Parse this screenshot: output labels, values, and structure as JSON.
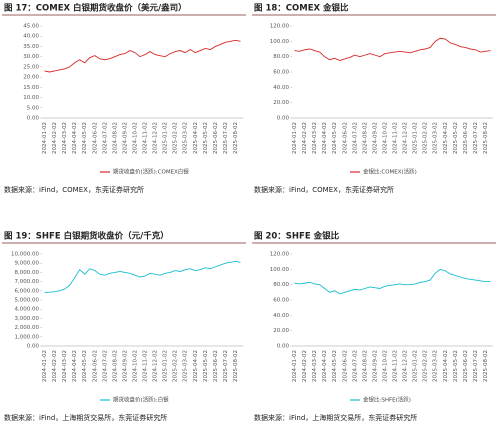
{
  "chart_data": [
    {
      "type": "line",
      "title": "图 17：COMEX 白银期货收盘价（美元/盎司）",
      "source": "数据来源：iFind，COMEX，东莞证券研究所",
      "categories": [
        "2024-01-02",
        null,
        "2024-02-02",
        null,
        "2024-03-02",
        null,
        "2024-04-02",
        null,
        "2024-05-02",
        null,
        "2024-06-02",
        null,
        "2024-07-02",
        null,
        "2024-08-02",
        null,
        "2024-09-02",
        null,
        "2024-10-02",
        null,
        "2024-11-02",
        null,
        "2024-12-02",
        null,
        "2025-01-02",
        null,
        "2025-02-02",
        null,
        "2025-03-02",
        null,
        "2025-04-02",
        null,
        "2025-05-02",
        null,
        "2025-06-02",
        null,
        "2025-07-02",
        null,
        "2025-08-02",
        null
      ],
      "series": [
        {
          "name": "期货收盘价(活跃):COMEX白银",
          "color": "#d62728",
          "values": [
            23,
            22.5,
            23,
            23.5,
            24,
            25,
            27,
            28.5,
            27,
            29.5,
            30.5,
            29,
            28.5,
            29,
            30,
            31,
            31.5,
            33,
            32,
            30,
            31,
            32.5,
            31,
            30.5,
            30,
            31.5,
            32.5,
            33,
            32,
            33.5,
            32,
            33,
            34,
            33.5,
            35,
            36,
            37,
            37.5,
            38,
            37.5
          ]
        }
      ],
      "ylim": [
        0,
        45
      ],
      "yticks": [
        {
          "value": 0,
          "label": "0.00"
        },
        {
          "value": 5,
          "label": "5.00"
        },
        {
          "value": 10,
          "label": "10.00"
        },
        {
          "value": 15,
          "label": "15.00"
        },
        {
          "value": 20,
          "label": "20.00"
        },
        {
          "value": 25,
          "label": "25.00"
        },
        {
          "value": 30,
          "label": "30.00"
        },
        {
          "value": 35,
          "label": "35.00"
        },
        {
          "value": 40,
          "label": "40.00"
        },
        {
          "value": 45,
          "label": "45.00"
        }
      ]
    },
    {
      "type": "line",
      "title": "图 18：COMEX 金银比",
      "source": "数据来源：iFind，COMEX，东莞证券研究所",
      "categories": [
        "2024-01-02",
        null,
        "2024-02-02",
        null,
        "2024-03-02",
        null,
        "2024-04-02",
        null,
        "2024-05-02",
        null,
        "2024-06-02",
        null,
        "2024-07-02",
        null,
        "2024-08-02",
        null,
        "2024-09-02",
        null,
        "2024-10-02",
        null,
        "2024-11-02",
        null,
        "2024-12-02",
        null,
        "2025-01-02",
        null,
        "2025-02-02",
        null,
        "2025-03-02",
        null,
        "2025-04-02",
        null,
        "2025-05-02",
        null,
        "2025-06-02",
        null,
        "2025-07-02",
        null,
        "2025-08-02",
        null
      ],
      "series": [
        {
          "name": "金银比:COMEX(活跃)",
          "color": "#d62728",
          "values": [
            88,
            87,
            89,
            90,
            88,
            86,
            80,
            76,
            78,
            75,
            77,
            79,
            82,
            80,
            82,
            84,
            82,
            80,
            84,
            85,
            86,
            87,
            86,
            85,
            87,
            89,
            90,
            92,
            100,
            104,
            103,
            98,
            96,
            93,
            92,
            90,
            89,
            86,
            87,
            88
          ]
        }
      ],
      "ylim": [
        0,
        120
      ],
      "yticks": [
        {
          "value": 0,
          "label": "0.00"
        },
        {
          "value": 20,
          "label": "20.00"
        },
        {
          "value": 40,
          "label": "40.00"
        },
        {
          "value": 60,
          "label": "60.00"
        },
        {
          "value": 80,
          "label": "80.00"
        },
        {
          "value": 100,
          "label": "100.00"
        },
        {
          "value": 120,
          "label": "120.00"
        }
      ]
    },
    {
      "type": "line",
      "title": "图 19：SHFE 白银期货收盘价（元/千克）",
      "source": "数据来源：iFind，上海期货交易所，东莞证券研究所",
      "categories": [
        "2024-01-02",
        null,
        "2024-02-02",
        null,
        "2024-03-02",
        null,
        "2024-04-02",
        null,
        "2024-05-02",
        null,
        "2024-06-02",
        null,
        "2024-07-02",
        null,
        "2024-08-02",
        null,
        "2024-09-02",
        null,
        "2024-10-02",
        null,
        "2024-11-02",
        null,
        "2024-12-02",
        null,
        "2025-01-02",
        null,
        "2025-02-02",
        null,
        "2025-03-02",
        null,
        "2025-04-02",
        null,
        "2025-05-02",
        null,
        "2025-06-02",
        null,
        "2025-07-02",
        null,
        "2025-08-02",
        null
      ],
      "series": [
        {
          "name": "期货收盘价(活跃):白银",
          "color": "#17becf",
          "values": [
            5800,
            5850,
            5900,
            6000,
            6200,
            6600,
            7400,
            8300,
            7800,
            8400,
            8200,
            7800,
            7700,
            7900,
            8000,
            8100,
            8000,
            7900,
            7700,
            7500,
            7600,
            7900,
            7800,
            7700,
            7900,
            8000,
            8200,
            8100,
            8300,
            8400,
            8200,
            8300,
            8500,
            8400,
            8600,
            8800,
            9000,
            9100,
            9200,
            9100
          ]
        }
      ],
      "ylim": [
        0,
        10000
      ],
      "yticks": [
        {
          "value": 0,
          "label": "0.00"
        },
        {
          "value": 1000,
          "label": "1,000.00"
        },
        {
          "value": 2000,
          "label": "2,000.00"
        },
        {
          "value": 3000,
          "label": "3,000.00"
        },
        {
          "value": 4000,
          "label": "4,000.00"
        },
        {
          "value": 5000,
          "label": "5,000.00"
        },
        {
          "value": 6000,
          "label": "6,000.00"
        },
        {
          "value": 7000,
          "label": "7,000.00"
        },
        {
          "value": 8000,
          "label": "8,000.00"
        },
        {
          "value": 9000,
          "label": "9,000.00"
        },
        {
          "value": 10000,
          "label": "10,000.00"
        }
      ]
    },
    {
      "type": "line",
      "title": "图 20：SHFE 金银比",
      "source": "数据来源：iFind，上海期货交易所，东莞证券研究所",
      "categories": [
        "2024-01-02",
        null,
        "2024-02-02",
        null,
        "2024-03-02",
        null,
        "2024-04-02",
        null,
        "2024-05-02",
        null,
        "2024-06-02",
        null,
        "2024-07-02",
        null,
        "2024-08-02",
        null,
        "2024-09-02",
        null,
        "2024-10-02",
        null,
        "2024-11-02",
        null,
        "2024-12-02",
        null,
        "2025-01-02",
        null,
        "2025-02-02",
        null,
        "2025-03-02",
        null,
        "2025-04-02",
        null,
        "2025-05-02",
        null,
        "2025-06-02",
        null,
        "2025-07-02",
        null,
        "2025-08-02",
        null
      ],
      "series": [
        {
          "name": "金银比:SHFE(活跃)",
          "color": "#17becf",
          "values": [
            82,
            81,
            82,
            83,
            81,
            80,
            75,
            70,
            72,
            68,
            70,
            72,
            74,
            73,
            75,
            77,
            76,
            75,
            78,
            79,
            80,
            81,
            80,
            80,
            81,
            83,
            84,
            86,
            95,
            100,
            98,
            94,
            92,
            90,
            88,
            87,
            86,
            85,
            84,
            84
          ]
        }
      ],
      "ylim": [
        0,
        120
      ],
      "yticks": [
        {
          "value": 0,
          "label": "0.00"
        },
        {
          "value": 20,
          "label": "20.00"
        },
        {
          "value": 40,
          "label": "40.00"
        },
        {
          "value": 60,
          "label": "60.00"
        },
        {
          "value": 80,
          "label": "80.00"
        },
        {
          "value": 100,
          "label": "100.00"
        },
        {
          "value": 120,
          "label": "120.00"
        }
      ]
    }
  ]
}
